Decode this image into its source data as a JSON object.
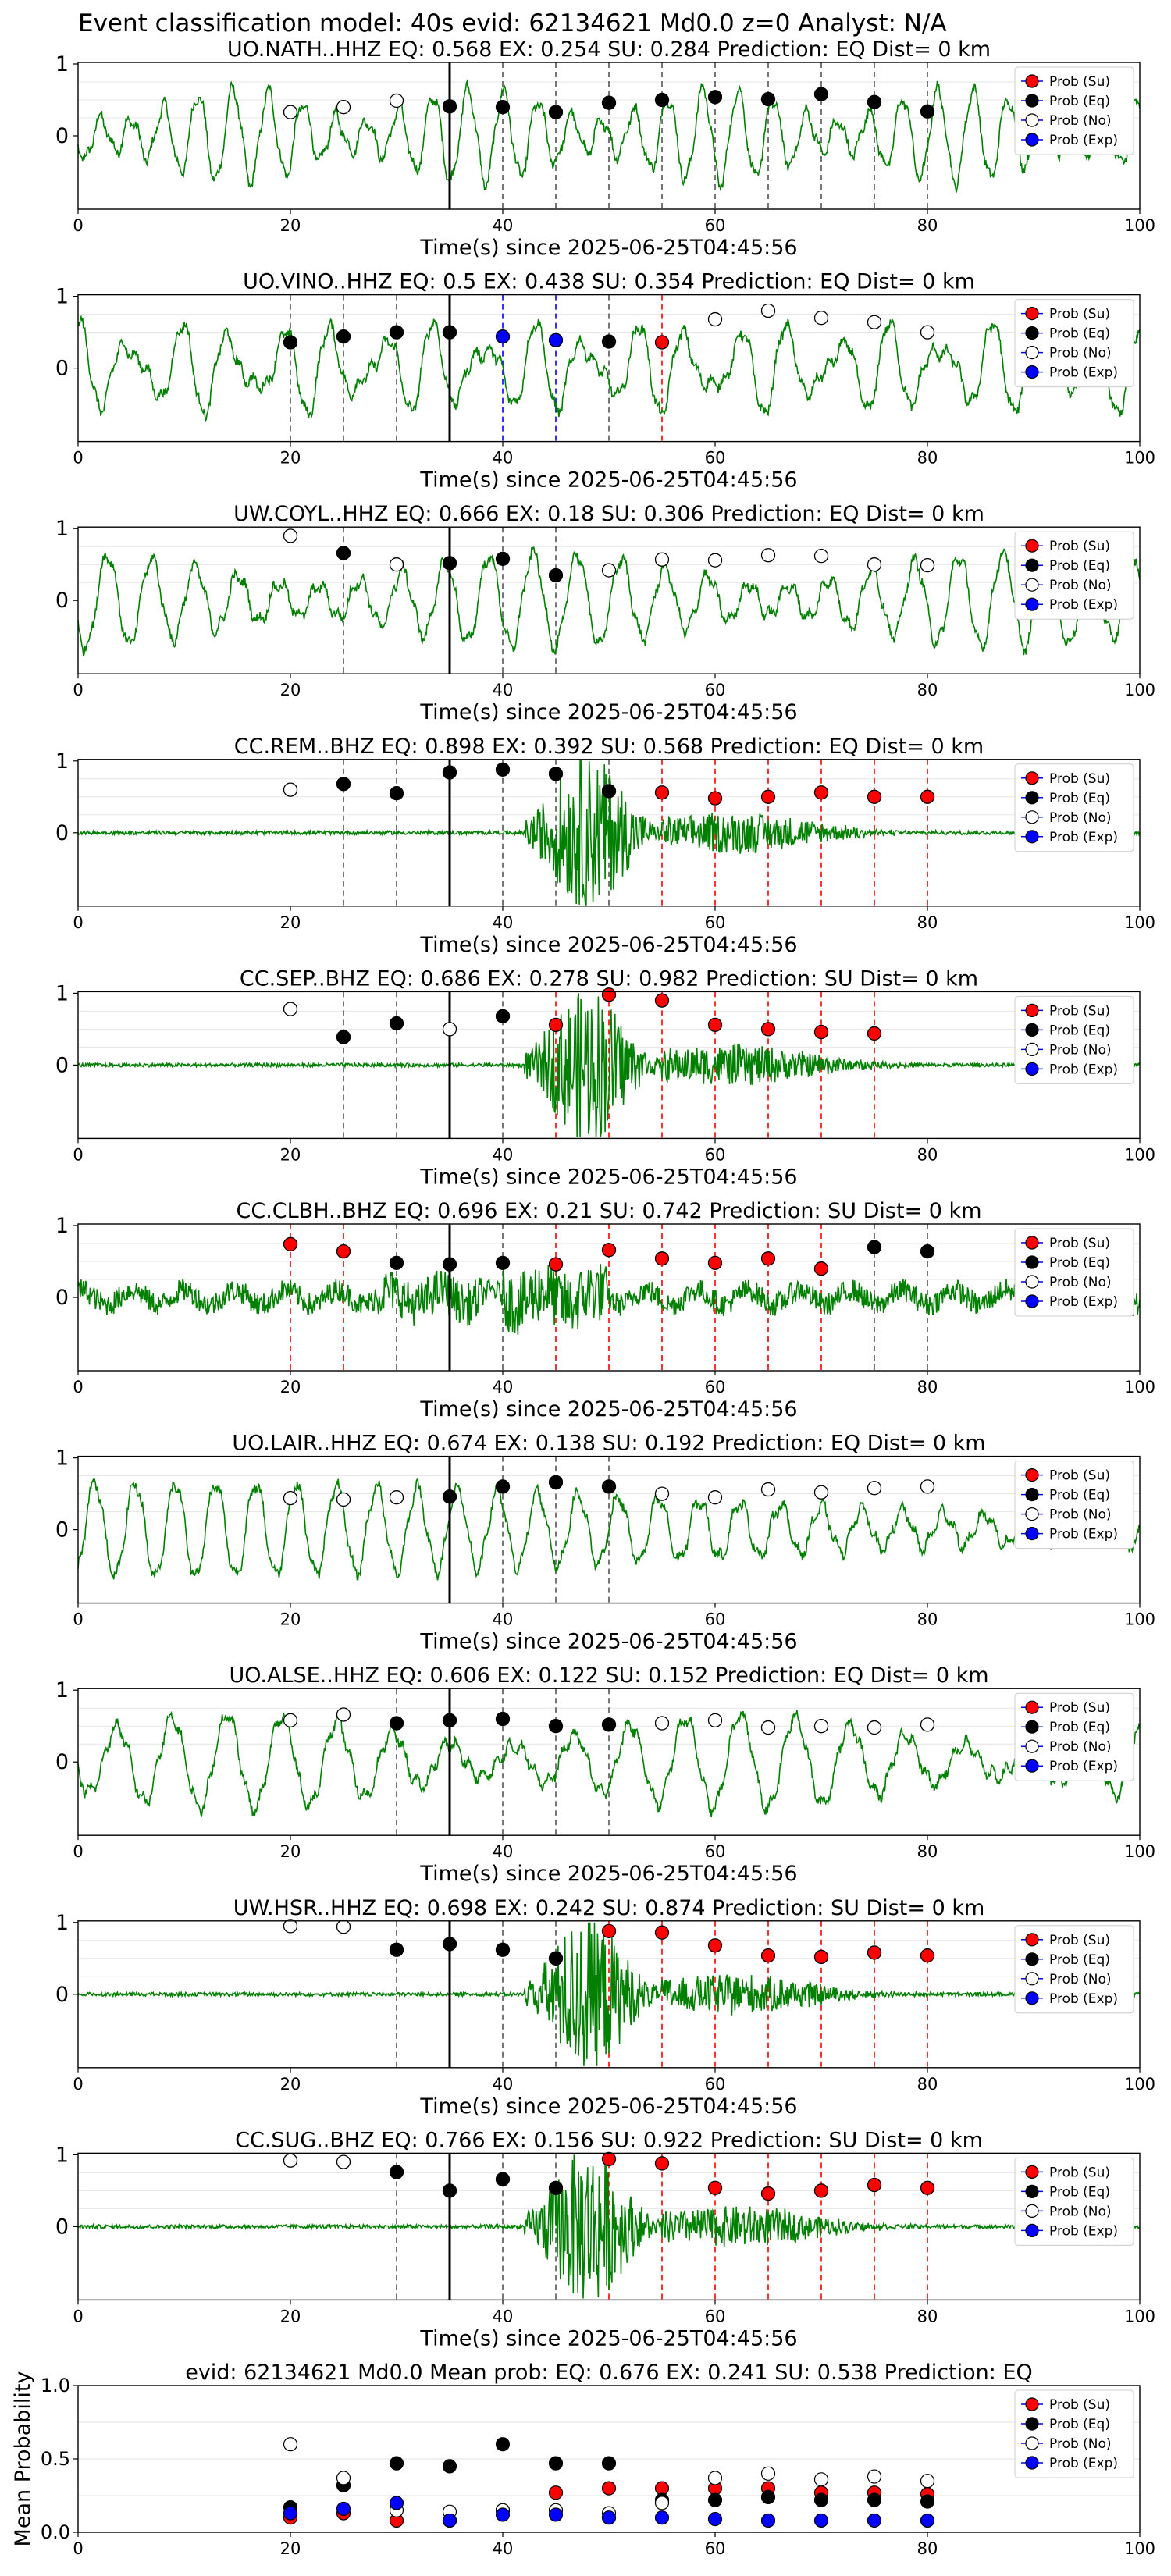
{
  "suptitle": "Event classification model: 40s evid: 62134621 Md0.0 z=0 Analyst: N/A",
  "xlabel_common": "Time(s) since 2025-06-25T04:45:56",
  "x_ticks": [
    "0",
    "20",
    "40",
    "60",
    "80",
    "100"
  ],
  "y_ticks": [
    "0",
    "1"
  ],
  "legend_labels": [
    "Prob (Su)",
    "Prob (Eq)",
    "Prob (No)",
    "Prob (Exp)"
  ],
  "colors": {
    "waveform": "#008000",
    "su": "#ff0000",
    "eq": "#000000",
    "no": "#ffffff",
    "exp": "#0000ff",
    "line_eq": "#555555",
    "line_su": "#ff0000",
    "line_exp": "#0000ff",
    "origin": "#000000"
  },
  "chart_data": [
    {
      "type": "line",
      "title": "UO.NATH..HHZ   EQ: 0.568  EX: 0.254  SU: 0.284   Prediction: EQ    Dist= 0 km",
      "xlabel": "Time(s) since 2025-06-25T04:45:56",
      "xlim": [
        0,
        100
      ],
      "ylim": [
        -1,
        1
      ],
      "waveform_style": "microseism",
      "origin_time": 35,
      "window_times": [
        20,
        25,
        30,
        35,
        40,
        45,
        50,
        55,
        60,
        65,
        70,
        75,
        80
      ],
      "window_class": [
        "No",
        "No",
        "No",
        "Eq",
        "Eq",
        "Eq",
        "Eq",
        "Eq",
        "Eq",
        "Eq",
        "Eq",
        "Eq",
        "Eq"
      ],
      "window_prob": [
        0.33,
        0.4,
        0.49,
        0.41,
        0.4,
        0.33,
        0.46,
        0.5,
        0.54,
        0.51,
        0.58,
        0.47,
        0.34
      ]
    },
    {
      "type": "line",
      "title": "UO.VINO..HHZ   EQ: 0.5  EX: 0.438  SU: 0.354   Prediction: EQ    Dist= 0 km",
      "xlabel": "Time(s) since 2025-06-25T04:45:56",
      "xlim": [
        0,
        100
      ],
      "ylim": [
        -1,
        1
      ],
      "waveform_style": "microseism",
      "origin_time": 35,
      "window_times": [
        20,
        25,
        30,
        35,
        40,
        45,
        50,
        55,
        60,
        65,
        70,
        75,
        80
      ],
      "window_class": [
        "Eq",
        "Eq",
        "Eq",
        "Eq",
        "Exp",
        "Exp",
        "Eq",
        "Su",
        "No",
        "No",
        "No",
        "No",
        "No"
      ],
      "window_prob": [
        0.36,
        0.44,
        0.5,
        0.5,
        0.44,
        0.39,
        0.37,
        0.36,
        0.68,
        0.8,
        0.7,
        0.64,
        0.5
      ]
    },
    {
      "type": "line",
      "title": "UW.COYL..HHZ   EQ: 0.666  EX: 0.18  SU: 0.306   Prediction: EQ    Dist= 0 km",
      "xlabel": "Time(s) since 2025-06-25T04:45:56",
      "xlim": [
        0,
        100
      ],
      "ylim": [
        -1,
        1
      ],
      "waveform_style": "microseism",
      "origin_time": 35,
      "window_times": [
        20,
        25,
        30,
        35,
        40,
        45,
        50,
        55,
        60,
        65,
        70,
        75,
        80
      ],
      "window_class": [
        "No",
        "Eq",
        "No",
        "Eq",
        "Eq",
        "Eq",
        "No",
        "No",
        "No",
        "No",
        "No",
        "No",
        "No"
      ],
      "window_prob": [
        0.9,
        0.66,
        0.5,
        0.52,
        0.58,
        0.35,
        0.42,
        0.57,
        0.56,
        0.63,
        0.62,
        0.5,
        0.49
      ]
    },
    {
      "type": "line",
      "title": "CC.REM..BHZ   EQ: 0.898  EX: 0.392  SU: 0.568   Prediction: EQ    Dist= 0 km",
      "xlabel": "Time(s) since 2025-06-25T04:45:56",
      "xlim": [
        0,
        100
      ],
      "ylim": [
        -1,
        1
      ],
      "waveform_style": "event",
      "origin_time": 35,
      "window_times": [
        20,
        25,
        30,
        35,
        40,
        45,
        50,
        55,
        60,
        65,
        70,
        75,
        80
      ],
      "window_class": [
        "No",
        "Eq",
        "Eq",
        "Eq",
        "Eq",
        "Eq",
        "Eq",
        "Su",
        "Su",
        "Su",
        "Su",
        "Su",
        "Su"
      ],
      "window_prob": [
        0.6,
        0.68,
        0.55,
        0.84,
        0.88,
        0.82,
        0.58,
        0.56,
        0.48,
        0.5,
        0.56,
        0.5,
        0.5
      ]
    },
    {
      "type": "line",
      "title": "CC.SEP..BHZ   EQ: 0.686  EX: 0.278  SU: 0.982   Prediction: SU    Dist= 0 km",
      "xlabel": "Time(s) since 2025-06-25T04:45:56",
      "xlim": [
        0,
        100
      ],
      "ylim": [
        -1,
        1
      ],
      "waveform_style": "event",
      "origin_time": 35,
      "window_times": [
        20,
        25,
        30,
        35,
        40,
        45,
        50,
        55,
        60,
        65,
        70,
        75
      ],
      "window_class": [
        "No",
        "Eq",
        "Eq",
        "No",
        "Eq",
        "Su",
        "Su",
        "Su",
        "Su",
        "Su",
        "Su",
        "Su"
      ],
      "window_prob": [
        0.78,
        0.39,
        0.58,
        0.5,
        0.68,
        0.56,
        0.98,
        0.9,
        0.56,
        0.5,
        0.46,
        0.44
      ]
    },
    {
      "type": "line",
      "title": "CC.CLBH..BHZ   EQ: 0.696  EX: 0.21  SU: 0.742   Prediction: SU    Dist= 0 km",
      "xlabel": "Time(s) since 2025-06-25T04:45:56",
      "xlim": [
        0,
        100
      ],
      "ylim": [
        -1,
        1
      ],
      "waveform_style": "noisy",
      "origin_time": 35,
      "window_times": [
        20,
        25,
        30,
        35,
        40,
        45,
        50,
        55,
        60,
        65,
        70,
        75,
        80
      ],
      "window_class": [
        "Su",
        "Su",
        "Eq",
        "Eq",
        "Eq",
        "Su",
        "Su",
        "Su",
        "Su",
        "Su",
        "Su",
        "Eq",
        "Eq"
      ],
      "window_prob": [
        0.74,
        0.64,
        0.48,
        0.46,
        0.48,
        0.46,
        0.66,
        0.54,
        0.48,
        0.54,
        0.4,
        0.7,
        0.64
      ]
    },
    {
      "type": "line",
      "title": "UO.LAIR..HHZ   EQ: 0.674  EX: 0.138  SU: 0.192   Prediction: EQ    Dist= 0 km",
      "xlabel": "Time(s) since 2025-06-25T04:45:56",
      "xlim": [
        0,
        100
      ],
      "ylim": [
        -1,
        1
      ],
      "waveform_style": "microseism",
      "origin_time": 35,
      "window_times": [
        20,
        25,
        30,
        35,
        40,
        45,
        50,
        55,
        60,
        65,
        70,
        75,
        80
      ],
      "window_class": [
        "No",
        "No",
        "No",
        "Eq",
        "Eq",
        "Eq",
        "Eq",
        "No",
        "No",
        "No",
        "No",
        "No",
        "No"
      ],
      "window_prob": [
        0.44,
        0.42,
        0.45,
        0.46,
        0.6,
        0.66,
        0.6,
        0.5,
        0.45,
        0.56,
        0.52,
        0.58,
        0.6
      ]
    },
    {
      "type": "line",
      "title": "UO.ALSE..HHZ   EQ: 0.606  EX: 0.122  SU: 0.152   Prediction: EQ    Dist= 0 km",
      "xlabel": "Time(s) since 2025-06-25T04:45:56",
      "xlim": [
        0,
        100
      ],
      "ylim": [
        -1,
        1
      ],
      "waveform_style": "microseism",
      "origin_time": 35,
      "window_times": [
        20,
        25,
        30,
        35,
        40,
        45,
        50,
        55,
        60,
        65,
        70,
        75,
        80
      ],
      "window_class": [
        "No",
        "No",
        "Eq",
        "Eq",
        "Eq",
        "Eq",
        "Eq",
        "No",
        "No",
        "No",
        "No",
        "No",
        "No"
      ],
      "window_prob": [
        0.58,
        0.66,
        0.54,
        0.58,
        0.6,
        0.5,
        0.52,
        0.54,
        0.58,
        0.48,
        0.5,
        0.48,
        0.52
      ]
    },
    {
      "type": "line",
      "title": "UW.HSR..HHZ   EQ: 0.698  EX: 0.242  SU: 0.874   Prediction: SU    Dist= 0 km",
      "xlabel": "Time(s) since 2025-06-25T04:45:56",
      "xlim": [
        0,
        100
      ],
      "ylim": [
        -1,
        1
      ],
      "waveform_style": "event",
      "origin_time": 35,
      "window_times": [
        20,
        25,
        30,
        35,
        40,
        45,
        50,
        55,
        60,
        65,
        70,
        75,
        80
      ],
      "window_class": [
        "No",
        "No",
        "Eq",
        "Eq",
        "Eq",
        "Eq",
        "Su",
        "Su",
        "Su",
        "Su",
        "Su",
        "Su",
        "Su"
      ],
      "window_prob": [
        0.95,
        0.94,
        0.62,
        0.7,
        0.62,
        0.5,
        0.88,
        0.86,
        0.68,
        0.54,
        0.52,
        0.58,
        0.54
      ]
    },
    {
      "type": "line",
      "title": "CC.SUG..BHZ   EQ: 0.766  EX: 0.156  SU: 0.922   Prediction: SU    Dist= 0 km",
      "xlabel": "Time(s) since 2025-06-25T04:45:56",
      "xlim": [
        0,
        100
      ],
      "ylim": [
        -1,
        1
      ],
      "waveform_style": "event",
      "origin_time": 35,
      "window_times": [
        20,
        25,
        30,
        35,
        40,
        45,
        50,
        55,
        60,
        65,
        70,
        75,
        80
      ],
      "window_class": [
        "No",
        "No",
        "Eq",
        "Eq",
        "Eq",
        "Eq",
        "Su",
        "Su",
        "Su",
        "Su",
        "Su",
        "Su",
        "Su"
      ],
      "window_prob": [
        0.92,
        0.9,
        0.76,
        0.5,
        0.66,
        0.54,
        0.94,
        0.88,
        0.54,
        0.46,
        0.5,
        0.58,
        0.54
      ]
    },
    {
      "type": "scatter",
      "title": "evid: 62134621  Md0.0   Mean prob:   EQ: 0.676  EX: 0.241  SU: 0.538   Prediction: EQ",
      "ylabel": "Mean Probability",
      "xlim": [
        0,
        100
      ],
      "ylim": [
        0,
        1
      ],
      "y_ticks": [
        "0.0",
        "0.5",
        "1.0"
      ],
      "x": [
        20,
        25,
        30,
        35,
        40,
        45,
        50,
        55,
        60,
        65,
        70,
        75,
        80
      ],
      "series": [
        {
          "name": "Prob (Su)",
          "values": [
            0.1,
            0.13,
            0.08,
            0.08,
            0.15,
            0.27,
            0.3,
            0.3,
            0.3,
            0.3,
            0.27,
            0.27,
            0.26
          ]
        },
        {
          "name": "Prob (Eq)",
          "values": [
            0.17,
            0.32,
            0.47,
            0.45,
            0.6,
            0.47,
            0.47,
            0.22,
            0.22,
            0.24,
            0.22,
            0.22,
            0.21
          ]
        },
        {
          "name": "Prob (No)",
          "values": [
            0.6,
            0.37,
            0.15,
            0.14,
            0.15,
            0.15,
            0.13,
            0.2,
            0.37,
            0.4,
            0.36,
            0.38,
            0.35
          ]
        },
        {
          "name": "Prob (Exp)",
          "values": [
            0.13,
            0.16,
            0.2,
            0.08,
            0.12,
            0.12,
            0.1,
            0.1,
            0.09,
            0.08,
            0.08,
            0.08,
            0.08
          ]
        }
      ]
    }
  ]
}
